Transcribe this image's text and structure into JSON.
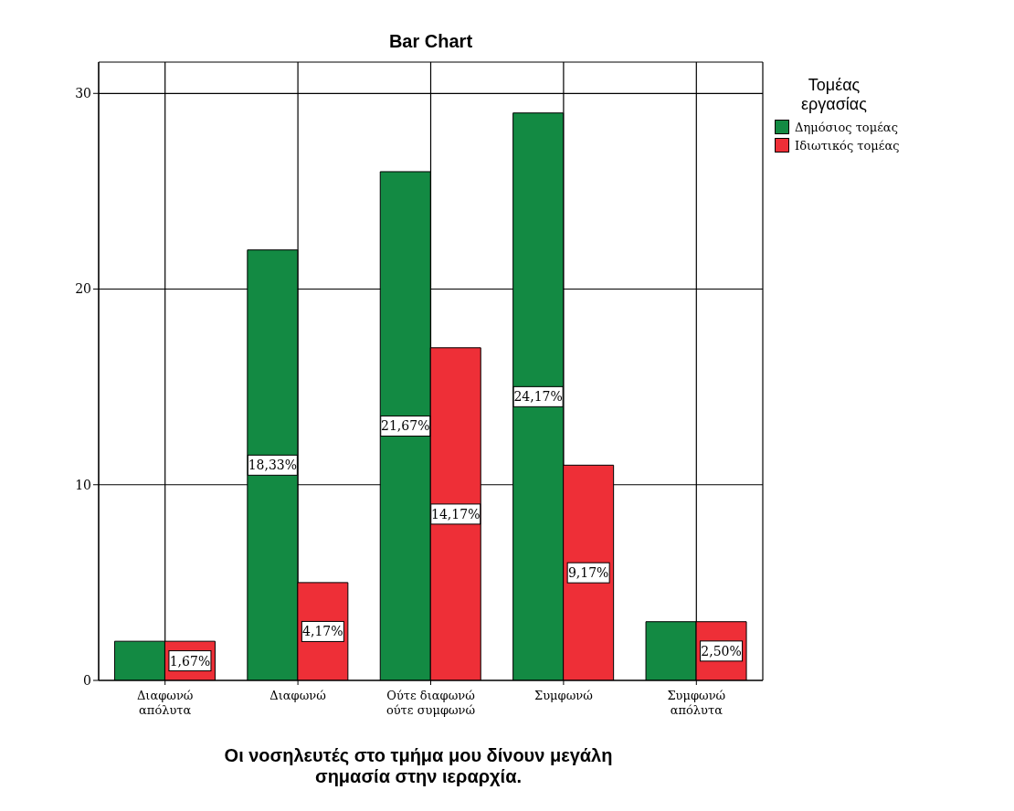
{
  "chart_data": {
    "type": "bar",
    "title": "Bar Chart",
    "xlabel": "Οι νοσηλευτές στο τμήμα μου δίνουν μεγάλη σημασία στην ιεραρχία.",
    "legend_title": "Τομέας εργασίας",
    "categories": [
      "Διαφωνώ απόλυτα",
      "Διαφωνώ",
      "Ούτε διαφωνώ ούτε συμφωνώ",
      "Συμφωνώ",
      "Συμφωνώ απόλυτα"
    ],
    "series": [
      {
        "name": "Δημόσιος τομέας",
        "color": "#138a43",
        "values": [
          2,
          22,
          26,
          29,
          3
        ]
      },
      {
        "name": "Ιδιωτικός τομέας",
        "color": "#ee2f37",
        "values": [
          2,
          5,
          17,
          11,
          3
        ]
      }
    ],
    "annotations": [
      {
        "text": "1,67%",
        "x": "Διαφωνώ απόλυτα",
        "y": 1
      },
      {
        "text": "18,33%",
        "x": "Διαφωνώ",
        "y": 11
      },
      {
        "text": "4,17%",
        "x": "Διαφωνώ",
        "y": 2.5
      },
      {
        "text": "21,67%",
        "x": "Ούτε διαφωνώ ούτε συμφωνώ",
        "y": 13
      },
      {
        "text": "14,17%",
        "x": "Ούτε διαφωνώ ούτε συμφωνώ",
        "y": 8.5
      },
      {
        "text": "24,17%",
        "x": "Συμφωνώ",
        "y": 14.5
      },
      {
        "text": "9,17%",
        "x": "Συμφωνώ",
        "y": 5.5
      },
      {
        "text": "2,50%",
        "x": "Συμφωνώ απόλυτα",
        "y": 1.5
      }
    ],
    "ylim": [
      0,
      31.6
    ],
    "yticks": [
      0,
      10,
      20,
      30
    ],
    "grid": true,
    "legend": "top right"
  }
}
